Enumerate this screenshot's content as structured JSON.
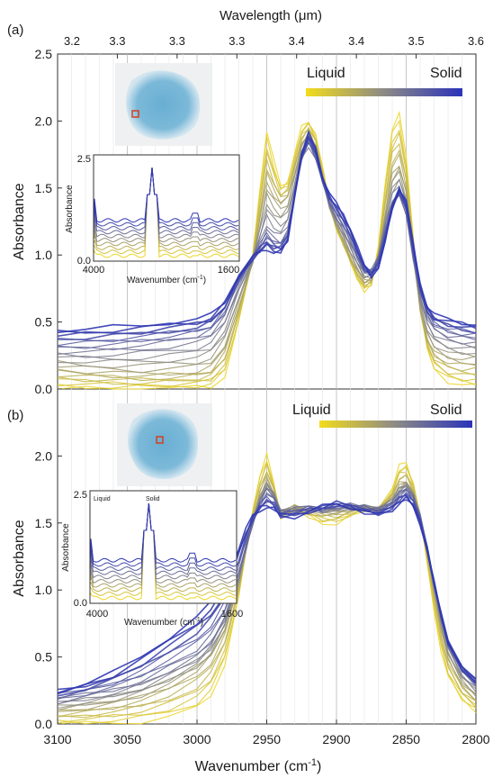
{
  "figure": {
    "top_axis_title": "Wavelength (μm)",
    "top_ticks": [
      "3.2",
      "3.3",
      "3.3",
      "3.3",
      "3.4",
      "3.4",
      "3.5",
      "3.6"
    ],
    "bottom_axis_title": "Wavenumber (cm",
    "bottom_axis_title_sup": "-1",
    "bottom_axis_title_end": ")",
    "x_ticks": [
      "3100",
      "3050",
      "3000",
      "2950",
      "2900",
      "2850",
      "2800"
    ]
  },
  "colors": {
    "liquid": "#ecd62a",
    "solid": "#2e36b4",
    "mid": "#8a8a8a"
  },
  "chart_data": [
    {
      "panel_label": "(a)",
      "type": "line",
      "xlabel": "Wavenumber (cm-1)",
      "ylabel": "Absorbance",
      "xlim": [
        3100,
        2800
      ],
      "ylim": [
        0,
        2.5
      ],
      "y_ticks": [
        "0.0",
        "0.5",
        "1.0",
        "1.5",
        "2.0",
        "2.5"
      ],
      "legend": {
        "left": "Liquid",
        "right": "Solid",
        "placement": "top-right"
      },
      "x": [
        3100,
        3080,
        3060,
        3040,
        3020,
        3000,
        2990,
        2980,
        2970,
        2960,
        2955,
        2950,
        2945,
        2940,
        2935,
        2930,
        2925,
        2920,
        2915,
        2910,
        2905,
        2900,
        2895,
        2890,
        2885,
        2880,
        2875,
        2870,
        2865,
        2860,
        2855,
        2850,
        2845,
        2840,
        2835,
        2830,
        2820,
        2810,
        2800
      ],
      "series": [
        {
          "values": [
            0.0,
            0.0,
            0.0,
            0.0,
            0.0,
            0.01,
            0.02,
            0.1,
            0.5,
            1.0,
            1.5,
            1.92,
            1.7,
            1.52,
            1.55,
            1.75,
            1.95,
            2.0,
            1.9,
            1.65,
            1.38,
            1.2,
            1.08,
            0.95,
            0.82,
            0.74,
            0.78,
            1.05,
            1.55,
            1.95,
            2.05,
            1.72,
            1.15,
            0.6,
            0.3,
            0.15,
            0.06,
            0.03,
            0.02
          ]
        },
        {
          "values": [
            0.15,
            0.13,
            0.12,
            0.11,
            0.12,
            0.13,
            0.16,
            0.3,
            0.62,
            0.95,
            1.25,
            1.55,
            1.45,
            1.38,
            1.42,
            1.62,
            1.82,
            1.9,
            1.8,
            1.58,
            1.36,
            1.22,
            1.1,
            0.98,
            0.88,
            0.8,
            0.82,
            0.98,
            1.3,
            1.6,
            1.68,
            1.48,
            1.0,
            0.6,
            0.38,
            0.28,
            0.22,
            0.2,
            0.2
          ]
        },
        {
          "values": [
            0.3,
            0.3,
            0.31,
            0.33,
            0.35,
            0.38,
            0.42,
            0.55,
            0.8,
            0.98,
            1.08,
            1.18,
            1.12,
            1.1,
            1.18,
            1.45,
            1.72,
            1.82,
            1.72,
            1.55,
            1.38,
            1.28,
            1.2,
            1.1,
            0.98,
            0.88,
            0.88,
            0.98,
            1.2,
            1.38,
            1.45,
            1.3,
            0.98,
            0.72,
            0.55,
            0.46,
            0.4,
            0.38,
            0.37
          ]
        },
        {
          "values": [
            0.44,
            0.45,
            0.46,
            0.47,
            0.5,
            0.52,
            0.55,
            0.65,
            0.85,
            0.98,
            1.02,
            1.05,
            1.02,
            1.02,
            1.1,
            1.45,
            1.75,
            1.9,
            1.8,
            1.58,
            1.45,
            1.38,
            1.3,
            1.2,
            1.05,
            0.92,
            0.85,
            0.9,
            1.1,
            1.35,
            1.5,
            1.4,
            1.08,
            0.78,
            0.62,
            0.55,
            0.52,
            0.5,
            0.48
          ]
        }
      ],
      "inset": {
        "xlabel": "Wavenumber (cm",
        "xlabel_sup": "-1",
        "xlabel_end": ")",
        "ylabel": "Absorbance",
        "x_ticks": [
          "4000",
          "1600"
        ],
        "y_ticks": [
          "0.0",
          "2.5"
        ],
        "top_left": "",
        "top_mid": ""
      }
    },
    {
      "panel_label": "(b)",
      "type": "line",
      "xlabel": "Wavenumber (cm-1)",
      "ylabel": "Absorbance",
      "xlim": [
        3100,
        2800
      ],
      "ylim": [
        0,
        2.5
      ],
      "y_ticks": [
        "0.0",
        "0.5",
        "1.0",
        "1.5",
        "2.0"
      ],
      "legend": {
        "left": "Liquid",
        "right": "Solid",
        "placement": "top-right"
      },
      "x": [
        3100,
        3080,
        3060,
        3040,
        3020,
        3000,
        2990,
        2980,
        2970,
        2965,
        2960,
        2955,
        2950,
        2945,
        2940,
        2930,
        2920,
        2910,
        2900,
        2890,
        2880,
        2870,
        2860,
        2855,
        2850,
        2845,
        2840,
        2835,
        2830,
        2825,
        2820,
        2810,
        2800
      ],
      "series": [
        {
          "values": [
            0.0,
            0.0,
            0.01,
            0.02,
            0.05,
            0.12,
            0.22,
            0.45,
            0.95,
            1.3,
            1.6,
            1.85,
            2.0,
            1.8,
            1.55,
            1.6,
            1.55,
            1.5,
            1.5,
            1.55,
            1.6,
            1.6,
            1.75,
            1.92,
            1.95,
            1.8,
            1.55,
            1.2,
            0.85,
            0.55,
            0.35,
            0.18,
            0.1
          ]
        },
        {
          "values": [
            0.1,
            0.12,
            0.15,
            0.2,
            0.28,
            0.4,
            0.5,
            0.7,
            1.05,
            1.3,
            1.52,
            1.7,
            1.82,
            1.72,
            1.58,
            1.62,
            1.6,
            1.58,
            1.58,
            1.6,
            1.62,
            1.6,
            1.68,
            1.78,
            1.8,
            1.72,
            1.55,
            1.3,
            1.0,
            0.72,
            0.5,
            0.3,
            0.2
          ]
        },
        {
          "values": [
            0.18,
            0.22,
            0.26,
            0.32,
            0.42,
            0.52,
            0.62,
            0.8,
            1.12,
            1.32,
            1.5,
            1.65,
            1.75,
            1.7,
            1.58,
            1.6,
            1.62,
            1.6,
            1.62,
            1.63,
            1.62,
            1.6,
            1.65,
            1.72,
            1.76,
            1.7,
            1.55,
            1.32,
            1.05,
            0.8,
            0.6,
            0.4,
            0.3
          ]
        },
        {
          "values": [
            0.25,
            0.3,
            0.38,
            0.5,
            0.65,
            0.8,
            0.9,
            1.05,
            1.32,
            1.45,
            1.55,
            1.6,
            1.62,
            1.6,
            1.55,
            1.55,
            1.58,
            1.62,
            1.65,
            1.62,
            1.58,
            1.56,
            1.6,
            1.65,
            1.68,
            1.62,
            1.5,
            1.3,
            1.05,
            0.82,
            0.62,
            0.42,
            0.32
          ]
        }
      ],
      "inset": {
        "xlabel": "Wavenumber (cm",
        "xlabel_sup": "-1",
        "xlabel_end": ")",
        "ylabel": "Absorbance",
        "x_ticks": [
          "4000",
          "1600"
        ],
        "y_ticks": [
          "0.0",
          "2.5"
        ],
        "top_left": "Liquid",
        "top_mid": "Solid"
      }
    }
  ]
}
